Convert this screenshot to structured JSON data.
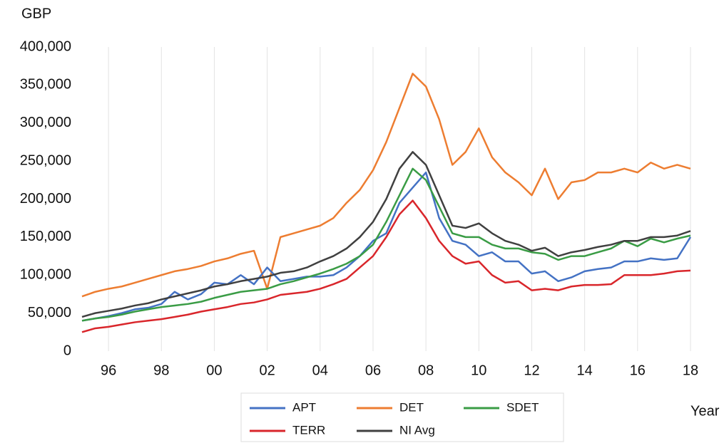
{
  "chart_data": {
    "type": "line",
    "y_label": "GBP",
    "x_label": "Year",
    "x": [
      1995,
      1995.5,
      1996,
      1996.5,
      1997,
      1997.5,
      1998,
      1998.5,
      1999,
      1999.5,
      2000,
      2000.5,
      2001,
      2001.5,
      2002,
      2002.5,
      2003,
      2003.5,
      2004,
      2004.5,
      2005,
      2005.5,
      2006,
      2006.5,
      2007,
      2007.5,
      2008,
      2008.5,
      2009,
      2009.5,
      2010,
      2010.5,
      2011,
      2011.5,
      2012,
      2012.5,
      2013,
      2013.5,
      2014,
      2014.5,
      2015,
      2015.5,
      2016,
      2016.5,
      2017,
      2017.5,
      2018
    ],
    "xlim": [
      1995,
      2018
    ],
    "xticks": [
      {
        "value": 1996,
        "label": "96"
      },
      {
        "value": 1998,
        "label": "98"
      },
      {
        "value": 2000,
        "label": "00"
      },
      {
        "value": 2002,
        "label": "02"
      },
      {
        "value": 2004,
        "label": "04"
      },
      {
        "value": 2006,
        "label": "06"
      },
      {
        "value": 2008,
        "label": "08"
      },
      {
        "value": 2010,
        "label": "10"
      },
      {
        "value": 2012,
        "label": "12"
      },
      {
        "value": 2014,
        "label": "14"
      },
      {
        "value": 2016,
        "label": "16"
      },
      {
        "value": 2018,
        "label": "18"
      }
    ],
    "ylim": [
      0,
      400000
    ],
    "yticks": [
      0,
      {
        "value": 50000,
        "label": "50,000"
      },
      {
        "value": 100000,
        "label": "100,000"
      },
      {
        "value": 150000,
        "label": "150,000"
      },
      {
        "value": 200000,
        "label": "200,000"
      },
      {
        "value": 250000,
        "label": "250,000"
      },
      {
        "value": 300000,
        "label": "300,000"
      },
      {
        "value": 350000,
        "label": "350,000"
      },
      {
        "value": 400000,
        "label": "400,000"
      }
    ],
    "grid": "x",
    "legend": "bottom",
    "series": [
      {
        "name": "APT",
        "color": "#4472c4",
        "values": [
          40000,
          43000,
          46000,
          50000,
          55000,
          57000,
          62000,
          78000,
          68000,
          75000,
          90000,
          88000,
          100000,
          88000,
          110000,
          92000,
          95000,
          98000,
          98000,
          100000,
          110000,
          125000,
          145000,
          155000,
          195000,
          215000,
          235000,
          175000,
          145000,
          140000,
          125000,
          130000,
          118000,
          118000,
          102000,
          105000,
          92000,
          97000,
          105000,
          108000,
          110000,
          118000,
          118000,
          122000,
          120000,
          122000,
          150000
        ]
      },
      {
        "name": "DET",
        "color": "#ed7d31",
        "values": [
          72000,
          78000,
          82000,
          85000,
          90000,
          95000,
          100000,
          105000,
          108000,
          112000,
          118000,
          122000,
          128000,
          132000,
          82000,
          150000,
          155000,
          160000,
          165000,
          175000,
          195000,
          212000,
          238000,
          275000,
          320000,
          365000,
          348000,
          305000,
          245000,
          262000,
          293000,
          255000,
          235000,
          222000,
          205000,
          240000,
          200000,
          222000,
          225000,
          235000,
          235000,
          240000,
          235000,
          248000,
          240000,
          245000,
          240000
        ]
      },
      {
        "name": "SDET",
        "color": "#3a9c45",
        "values": [
          40000,
          43000,
          45000,
          48000,
          52000,
          55000,
          58000,
          60000,
          62000,
          65000,
          70000,
          74000,
          78000,
          80000,
          82000,
          88000,
          92000,
          97000,
          102000,
          108000,
          115000,
          125000,
          140000,
          170000,
          205000,
          240000,
          225000,
          190000,
          155000,
          150000,
          150000,
          140000,
          135000,
          135000,
          130000,
          128000,
          120000,
          125000,
          125000,
          130000,
          135000,
          145000,
          138000,
          148000,
          143000,
          148000,
          152000
        ]
      },
      {
        "name": "TERR",
        "color": "#d9262b",
        "values": [
          25000,
          30000,
          32000,
          35000,
          38000,
          40000,
          42000,
          45000,
          48000,
          52000,
          55000,
          58000,
          62000,
          64000,
          68000,
          74000,
          76000,
          78000,
          82000,
          88000,
          95000,
          110000,
          125000,
          150000,
          180000,
          198000,
          175000,
          145000,
          125000,
          115000,
          118000,
          100000,
          90000,
          92000,
          80000,
          82000,
          80000,
          85000,
          87000,
          87000,
          88000,
          100000,
          100000,
          100000,
          102000,
          105000,
          106000
        ]
      },
      {
        "name": "NI Avg",
        "color": "#404040",
        "values": [
          45000,
          50000,
          53000,
          56000,
          60000,
          63000,
          68000,
          72000,
          76000,
          80000,
          85000,
          88000,
          92000,
          95000,
          98000,
          103000,
          105000,
          110000,
          118000,
          125000,
          135000,
          150000,
          170000,
          200000,
          240000,
          262000,
          245000,
          205000,
          165000,
          162000,
          168000,
          155000,
          145000,
          140000,
          132000,
          136000,
          125000,
          130000,
          133000,
          137000,
          140000,
          145000,
          145000,
          150000,
          150000,
          152000,
          158000
        ]
      }
    ]
  }
}
